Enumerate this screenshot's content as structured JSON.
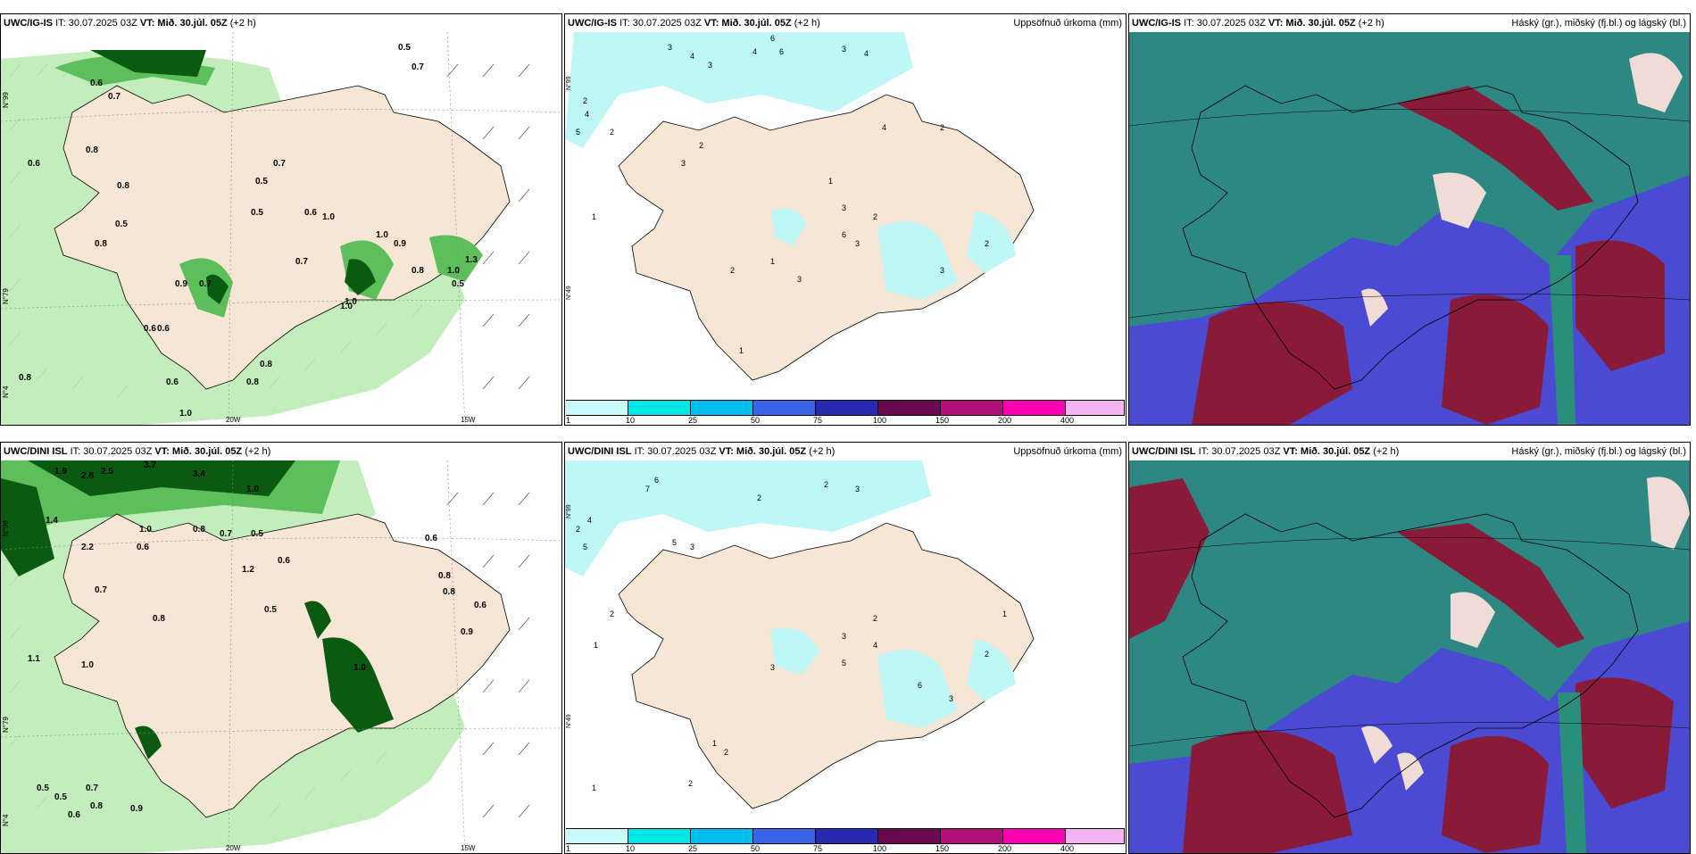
{
  "rows": [
    {
      "model": "UWC/IG-IS",
      "it": "IT: 30.07.2025 03Z",
      "vt": "VT: Mið. 30.júl. 05Z",
      "lead": "(+2 h)",
      "wind_labels": [
        "0.6",
        "0.7",
        "0.8",
        "0.8",
        "0.5",
        "0.7",
        "0.6",
        "1.0",
        "0.9",
        "1.0",
        "0.8",
        "0.5",
        "0.6",
        "0.8",
        "0.7",
        "0.6",
        "0.5",
        "0.9",
        "1.0",
        "0.7",
        "0.8",
        "1.3",
        "1.0",
        "0.5",
        "1.0",
        "0.5",
        "0.7",
        "0.8",
        "0.6",
        "0.6",
        "0.8",
        "1.0"
      ],
      "wind_ticks": [
        "20W",
        "15W"
      ],
      "lat_ticks": [
        "N°99",
        "N°79",
        "N°4"
      ],
      "precip_labels": [
        "3",
        "4",
        "3",
        "6",
        "4",
        "6",
        "3",
        "4",
        "2",
        "4",
        "5",
        "2",
        "1",
        "3",
        "2",
        "3",
        "2",
        "1",
        "6",
        "3",
        "4",
        "3",
        "2",
        "1",
        "2",
        "3",
        "1",
        "2"
      ],
      "precip_lat_ticks": [
        "N°99",
        "N°49"
      ]
    },
    {
      "model": "UWC/DINI ISL",
      "it": "IT: 30.07.2025 03Z",
      "vt": "VT: Mið. 30.júl. 05Z",
      "lead": "(+2 h)",
      "wind_labels": [
        "1.9",
        "2.8",
        "2.5",
        "3.7",
        "3.4",
        "1.0",
        "1.4",
        "2.2",
        "1.0",
        "0.8",
        "0.6",
        "0.7",
        "0.5",
        "0.6",
        "0.8",
        "1.2",
        "0.6",
        "0.8",
        "0.5",
        "0.8",
        "1.0",
        "0.9",
        "1.1",
        "1.0",
        "0.6",
        "0.7",
        "0.5",
        "0.5",
        "0.7",
        "0.6",
        "0.8",
        "0.9"
      ],
      "wind_ticks": [
        "20W",
        "15W"
      ],
      "lat_ticks": [
        "N°99",
        "N°79",
        "N°4"
      ],
      "precip_labels": [
        "6",
        "7",
        "5",
        "4",
        "2",
        "5",
        "3",
        "2",
        "2",
        "3",
        "1",
        "2",
        "3",
        "2",
        "5",
        "4",
        "6",
        "3",
        "2",
        "1",
        "2",
        "3",
        "1",
        "1",
        "2"
      ],
      "precip_lat_ticks": [
        "N°99",
        "N°49"
      ]
    }
  ],
  "precip_title": "Uppsöfnuð úrkoma (mm)",
  "cloud_title": "Háský (gr.), miðský (fj.bl.) og lágský (bl.)",
  "colorbar": {
    "ticks": [
      "1",
      "10",
      "25",
      "50",
      "75",
      "100",
      "150",
      "200",
      "400"
    ],
    "colors": [
      "#c8fafa",
      "#00e6e6",
      "#00bfef",
      "#3a64e8",
      "#2a2ab0",
      "#6a0a4e",
      "#b0107a",
      "#ff00b4",
      "#f4b4f4"
    ]
  },
  "colors": {
    "land": "#f5e6d6",
    "wind_light": "#b8eab0",
    "wind_mid": "#5cbf5c",
    "wind_dark": "#0a5a12",
    "precip": "#bff7f7",
    "cloud_high": "#2a8f7a",
    "cloud_mid": "#4a4ad2",
    "cloud_low": "#8a1a3a"
  }
}
